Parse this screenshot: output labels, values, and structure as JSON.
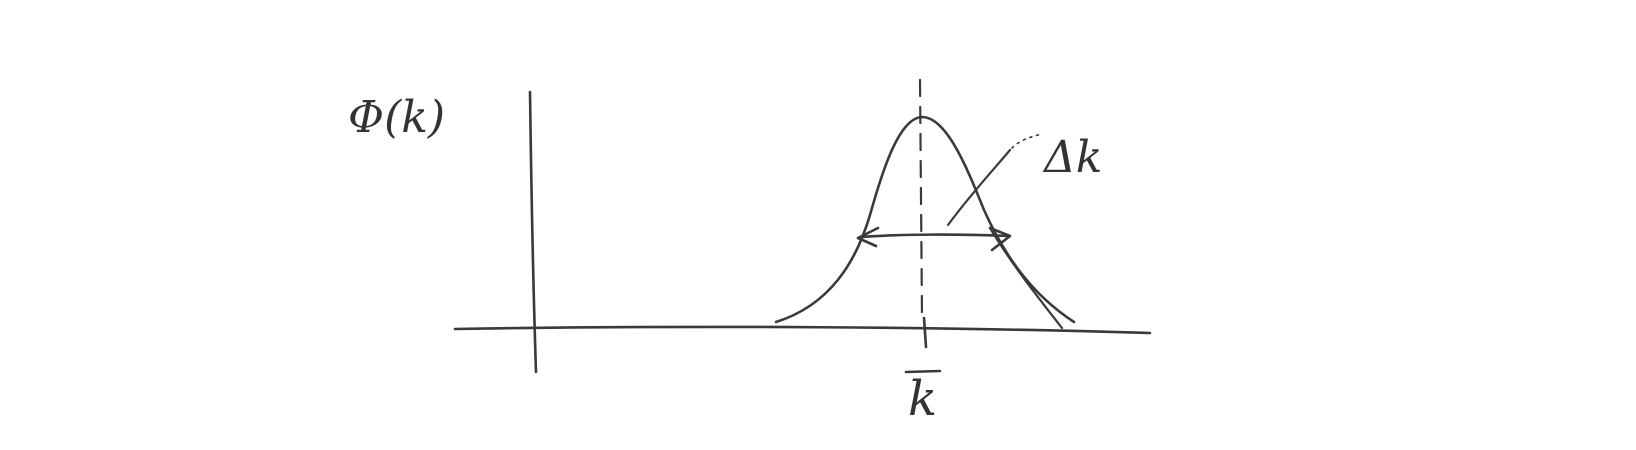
{
  "diagram": {
    "y_axis_label": "Φ(k)",
    "width_label": "Δk",
    "center_label": "k"
  }
}
